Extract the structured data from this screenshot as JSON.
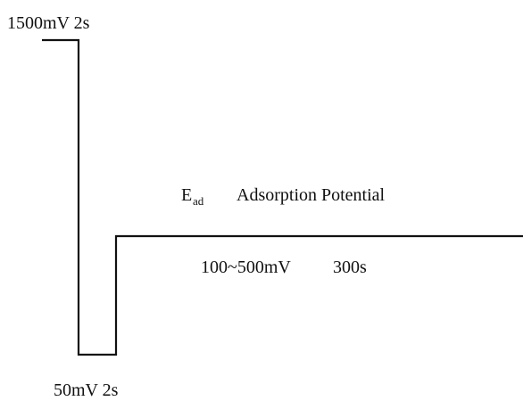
{
  "labels": {
    "high_step": "1500mV 2s",
    "low_step": "50mV 2s",
    "adsorption_symbol": "E",
    "adsorption_symbol_subscript": "ad",
    "adsorption_name": "Adsorption Potential",
    "adsorption_range": "100~500mV",
    "adsorption_time": "300s"
  }
}
